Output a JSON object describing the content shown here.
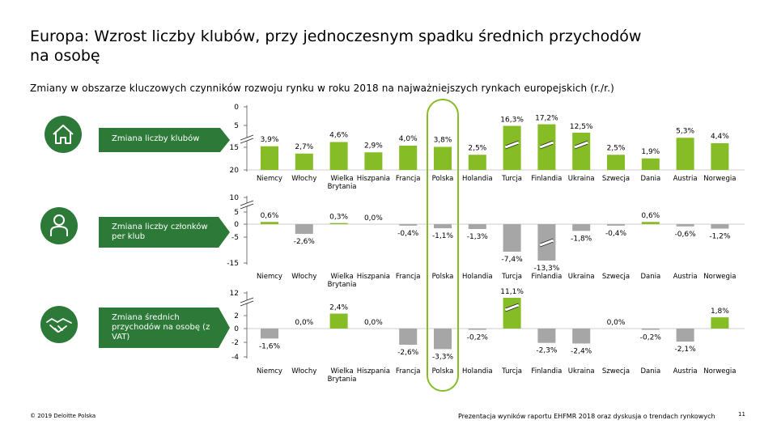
{
  "title": "Europa: Wzrost liczby klubów, przy jednoczesnym spadku średnich przychodów na osobę",
  "subtitle": "Zmiany w obszarze kluczowych czynników rozwoju rynku w roku 2018 na najważniejszych rynkach europejskich (r./r.)",
  "footer": {
    "copyright": "© 2019 Deloitte Polska",
    "presentation": "Prezentacja wyników raportu EHFMR 2018 oraz dyskusja o trendach rynkowych",
    "page_number": "11"
  },
  "colors": {
    "accent_green": "#2d7a38",
    "positive_bar": "#86bc25",
    "negative_bar": "#a6a6a6",
    "highlight_outline": "#86bc25"
  },
  "sections": [
    {
      "label": "Zmiana liczby klubów",
      "icon": "house-icon"
    },
    {
      "label": "Zmiana liczby członków per klub",
      "icon": "person-icon"
    },
    {
      "label": "Zmiana średnich przychodów na osobę (z VAT)",
      "icon": "handshake-icon"
    }
  ],
  "highlight_category": "Polska",
  "chart_data": [
    {
      "type": "bar",
      "title": "Zmiana liczby klubów",
      "categories": [
        "Niemcy",
        "Włochy",
        "Wielka Brytania",
        "Hiszpania",
        "Francja",
        "Polska",
        "Holandia",
        "Turcja",
        "Finlandia",
        "Ukraina",
        "Szwecja",
        "Dania",
        "Austria",
        "Norwegia"
      ],
      "values": [
        3.9,
        2.7,
        4.6,
        2.9,
        4.0,
        3.8,
        2.5,
        16.3,
        17.2,
        12.5,
        2.5,
        1.9,
        5.3,
        4.4
      ],
      "labels": [
        "3,9%",
        "2,7%",
        "4,6%",
        "2,9%",
        "4,0%",
        "3,8%",
        "2,5%",
        "16,3%",
        "17,2%",
        "12,5%",
        "2,5%",
        "1,9%",
        "5,3%",
        "4,4%"
      ],
      "yticks": [
        "20",
        "15",
        "5",
        "0"
      ],
      "axis_break": true,
      "ylim": [
        0,
        20
      ]
    },
    {
      "type": "bar",
      "title": "Zmiana liczby członków per klub",
      "categories": [
        "Niemcy",
        "Włochy",
        "Wielka Brytania",
        "Hiszpania",
        "Francja",
        "Polska",
        "Holandia",
        "Turcja",
        "Finlandia",
        "Ukraina",
        "Szwecja",
        "Dania",
        "Austria",
        "Norwegia"
      ],
      "values": [
        0.6,
        -2.6,
        0.3,
        0.0,
        -0.4,
        -1.1,
        -1.3,
        -7.4,
        -13.3,
        -1.8,
        -0.4,
        0.6,
        -0.6,
        -1.2
      ],
      "labels": [
        "0,6%",
        "-2,6%",
        "0,3%",
        "0,0%",
        "-0,4%",
        "-1,1%",
        "-1,3%",
        "-7,4%",
        "-13,3%",
        "-1,8%",
        "-0,4%",
        "0,6%",
        "-0,6%",
        "-1,2%"
      ],
      "yticks": [
        "10",
        "5",
        "0",
        "-5",
        "-15"
      ],
      "axis_break": true,
      "ylim": [
        -15,
        10
      ]
    },
    {
      "type": "bar",
      "title": "Zmiana średnich przychodów na osobę (z VAT)",
      "categories": [
        "Niemcy",
        "Włochy",
        "Wielka Brytania",
        "Hiszpania",
        "Francja",
        "Polska",
        "Holandia",
        "Turcja",
        "Finlandia",
        "Ukraina",
        "Szwecja",
        "Dania",
        "Austria",
        "Norwegia"
      ],
      "values": [
        -1.6,
        0.0,
        2.4,
        0.0,
        -2.6,
        -3.3,
        -0.2,
        11.1,
        -2.3,
        -2.4,
        0.0,
        -0.2,
        -2.1,
        1.8
      ],
      "labels": [
        "-1,6%",
        "0,0%",
        "2,4%",
        "0,0%",
        "-2,6%",
        "-3,3%",
        "-0,2%",
        "11,1%",
        "-2,3%",
        "-2,4%",
        "0,0%",
        "-0,2%",
        "-2,1%",
        "1,8%"
      ],
      "yticks": [
        "12",
        "2",
        "0",
        "-2",
        "-4"
      ],
      "axis_break": true,
      "ylim": [
        -4,
        12
      ]
    }
  ]
}
